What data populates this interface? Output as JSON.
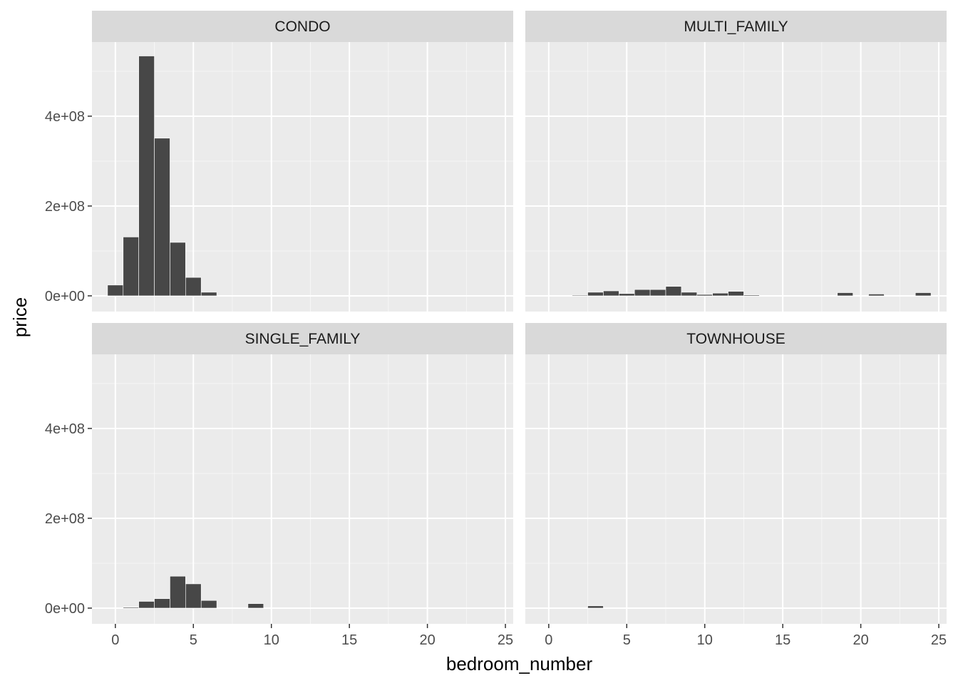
{
  "chart_data": {
    "type": "bar",
    "xlabel": "bedroom_number",
    "ylabel": "price",
    "xlim": [
      -1.5,
      25.5
    ],
    "ylim": [
      -35000000,
      565000000
    ],
    "x_ticks": [
      0,
      5,
      10,
      15,
      20,
      25
    ],
    "x_tick_labels": [
      "0",
      "5",
      "10",
      "15",
      "20",
      "25"
    ],
    "y_ticks": [
      0,
      200000000,
      400000000
    ],
    "y_tick_labels": [
      "0e+00",
      "2e+08",
      "4e+08"
    ],
    "grid": true,
    "facets": [
      {
        "label": "CONDO",
        "bars": [
          {
            "x": 0,
            "y": 24000000
          },
          {
            "x": 1,
            "y": 131000000
          },
          {
            "x": 2,
            "y": 534000000
          },
          {
            "x": 3,
            "y": 351000000
          },
          {
            "x": 4,
            "y": 119000000
          },
          {
            "x": 5,
            "y": 41000000
          },
          {
            "x": 6,
            "y": 8000000
          }
        ]
      },
      {
        "label": "MULTI_FAMILY",
        "bars": [
          {
            "x": 2,
            "y": 1500000
          },
          {
            "x": 3,
            "y": 8000000
          },
          {
            "x": 4,
            "y": 11000000
          },
          {
            "x": 5,
            "y": 5000000
          },
          {
            "x": 6,
            "y": 14000000
          },
          {
            "x": 7,
            "y": 14000000
          },
          {
            "x": 8,
            "y": 21000000
          },
          {
            "x": 9,
            "y": 8000000
          },
          {
            "x": 10,
            "y": 3000000
          },
          {
            "x": 11,
            "y": 6000000
          },
          {
            "x": 12,
            "y": 10000000
          },
          {
            "x": 13,
            "y": 2000000
          },
          {
            "x": 19,
            "y": 7000000
          },
          {
            "x": 21,
            "y": 4000000
          },
          {
            "x": 24,
            "y": 7000000
          }
        ]
      },
      {
        "label": "SINGLE_FAMILY",
        "bars": [
          {
            "x": 1,
            "y": 2000000
          },
          {
            "x": 2,
            "y": 15000000
          },
          {
            "x": 3,
            "y": 21000000
          },
          {
            "x": 4,
            "y": 71000000
          },
          {
            "x": 5,
            "y": 54000000
          },
          {
            "x": 6,
            "y": 17000000
          },
          {
            "x": 9,
            "y": 10000000
          }
        ]
      },
      {
        "label": "TOWNHOUSE",
        "bars": [
          {
            "x": 3,
            "y": 5000000
          }
        ]
      }
    ],
    "colors": {
      "bar": "#474747",
      "panel_background": "#ebebeb",
      "strip_background": "#d9d9d9",
      "grid": "#ffffff"
    }
  }
}
